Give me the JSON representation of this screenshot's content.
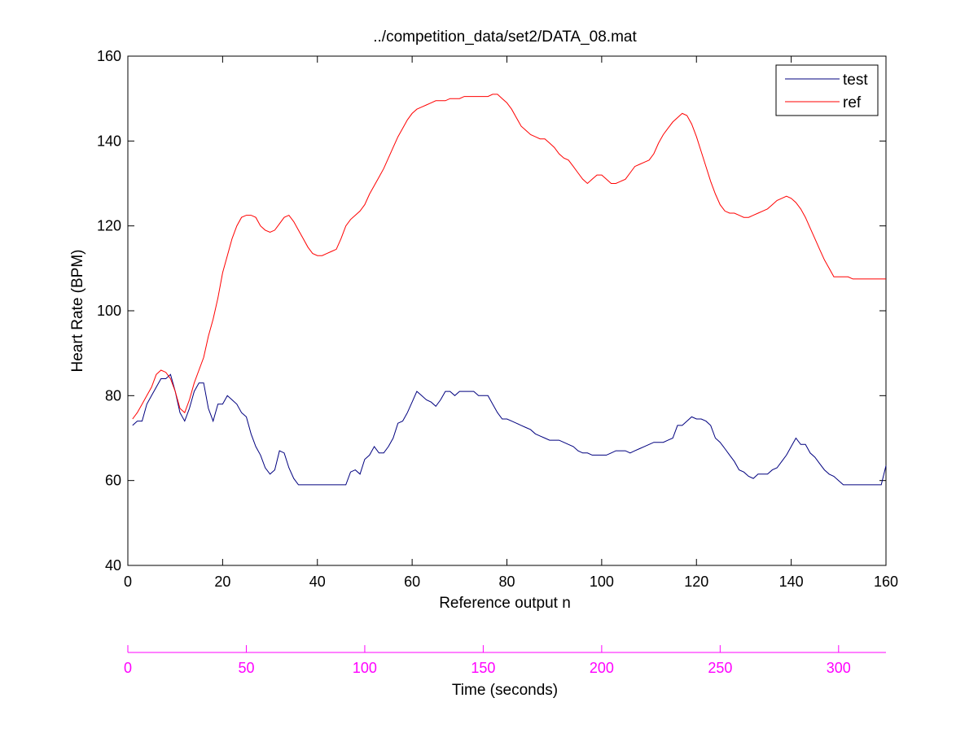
{
  "chart_data": {
    "type": "line",
    "title": "../competition_data/set2/DATA_08.mat",
    "xlabel": "Reference output n",
    "ylabel": "Heart Rate (BPM)",
    "xlim": [
      0,
      160
    ],
    "ylim": [
      40,
      160
    ],
    "x_ticks": [
      0,
      20,
      40,
      60,
      80,
      100,
      120,
      140,
      160
    ],
    "y_ticks": [
      40,
      60,
      80,
      100,
      120,
      140,
      160
    ],
    "grid": false,
    "legend_position": "top-right",
    "series": [
      {
        "name": "test",
        "color": "#00007f",
        "points": [
          [
            1,
            73
          ],
          [
            2,
            74
          ],
          [
            3,
            74
          ],
          [
            4,
            78
          ],
          [
            5,
            80
          ],
          [
            6,
            82
          ],
          [
            7,
            84
          ],
          [
            8,
            84
          ],
          [
            9,
            85
          ],
          [
            10,
            81
          ],
          [
            11,
            76
          ],
          [
            12,
            74
          ],
          [
            13,
            77
          ],
          [
            14,
            81
          ],
          [
            15,
            83
          ],
          [
            16,
            83
          ],
          [
            17,
            77
          ],
          [
            18,
            74
          ],
          [
            19,
            78
          ],
          [
            20,
            78
          ],
          [
            21,
            80
          ],
          [
            22,
            79
          ],
          [
            23,
            78
          ],
          [
            24,
            76
          ],
          [
            25,
            75
          ],
          [
            26,
            71
          ],
          [
            27,
            68
          ],
          [
            28,
            66
          ],
          [
            29,
            63
          ],
          [
            30,
            61.5
          ],
          [
            31,
            62.5
          ],
          [
            32,
            67
          ],
          [
            33,
            66.5
          ],
          [
            34,
            63
          ],
          [
            35,
            60.5
          ],
          [
            36,
            59
          ],
          [
            40,
            59
          ],
          [
            44,
            59
          ],
          [
            46,
            59
          ],
          [
            47,
            62
          ],
          [
            48,
            62.5
          ],
          [
            49,
            61.5
          ],
          [
            50,
            65
          ],
          [
            51,
            66
          ],
          [
            52,
            68
          ],
          [
            53,
            66.5
          ],
          [
            54,
            66.5
          ],
          [
            55,
            68
          ],
          [
            56,
            70
          ],
          [
            57,
            73.5
          ],
          [
            58,
            74
          ],
          [
            59,
            76
          ],
          [
            60,
            78.5
          ],
          [
            61,
            81
          ],
          [
            62,
            80
          ],
          [
            63,
            79
          ],
          [
            64,
            78.5
          ],
          [
            65,
            77.5
          ],
          [
            66,
            79
          ],
          [
            67,
            81
          ],
          [
            68,
            81
          ],
          [
            69,
            80
          ],
          [
            70,
            81
          ],
          [
            71,
            81
          ],
          [
            72,
            81
          ],
          [
            73,
            81
          ],
          [
            74,
            80
          ],
          [
            75,
            80
          ],
          [
            76,
            80
          ],
          [
            77,
            78
          ],
          [
            78,
            76
          ],
          [
            79,
            74.5
          ],
          [
            80,
            74.5
          ],
          [
            81,
            74
          ],
          [
            82,
            73.5
          ],
          [
            83,
            73
          ],
          [
            84,
            72.5
          ],
          [
            85,
            72
          ],
          [
            86,
            71
          ],
          [
            87,
            70.5
          ],
          [
            88,
            70
          ],
          [
            89,
            69.5
          ],
          [
            90,
            69.5
          ],
          [
            91,
            69.5
          ],
          [
            92,
            69
          ],
          [
            93,
            68.5
          ],
          [
            94,
            68
          ],
          [
            95,
            67
          ],
          [
            96,
            66.5
          ],
          [
            97,
            66.5
          ],
          [
            98,
            66
          ],
          [
            99,
            66
          ],
          [
            100,
            66
          ],
          [
            101,
            66
          ],
          [
            102,
            66.5
          ],
          [
            103,
            67
          ],
          [
            104,
            67
          ],
          [
            105,
            67
          ],
          [
            106,
            66.5
          ],
          [
            107,
            67
          ],
          [
            108,
            67.5
          ],
          [
            109,
            68
          ],
          [
            110,
            68.5
          ],
          [
            111,
            69
          ],
          [
            112,
            69
          ],
          [
            113,
            69
          ],
          [
            114,
            69.5
          ],
          [
            115,
            70
          ],
          [
            116,
            73
          ],
          [
            117,
            73
          ],
          [
            118,
            74
          ],
          [
            119,
            75
          ],
          [
            120,
            74.5
          ],
          [
            121,
            74.5
          ],
          [
            122,
            74
          ],
          [
            123,
            73
          ],
          [
            124,
            70
          ],
          [
            125,
            69
          ],
          [
            126,
            67.5
          ],
          [
            127,
            66
          ],
          [
            128,
            64.5
          ],
          [
            129,
            62.5
          ],
          [
            130,
            62
          ],
          [
            131,
            61
          ],
          [
            132,
            60.5
          ],
          [
            133,
            61.5
          ],
          [
            134,
            61.5
          ],
          [
            135,
            61.5
          ],
          [
            136,
            62.5
          ],
          [
            137,
            63
          ],
          [
            138,
            64.5
          ],
          [
            139,
            66
          ],
          [
            140,
            68
          ],
          [
            141,
            70
          ],
          [
            142,
            68.5
          ],
          [
            143,
            68.5
          ],
          [
            144,
            66.5
          ],
          [
            145,
            65.5
          ],
          [
            146,
            64
          ],
          [
            147,
            62.5
          ],
          [
            148,
            61.5
          ],
          [
            149,
            61
          ],
          [
            150,
            60
          ],
          [
            151,
            59
          ],
          [
            155,
            59
          ],
          [
            158,
            59
          ],
          [
            159,
            59
          ],
          [
            160,
            63.5
          ]
        ]
      },
      {
        "name": "ref",
        "color": "#ff0000",
        "points": [
          [
            1,
            74.5
          ],
          [
            2,
            76
          ],
          [
            3,
            78
          ],
          [
            4,
            80
          ],
          [
            5,
            82
          ],
          [
            6,
            85
          ],
          [
            7,
            86
          ],
          [
            8,
            85.5
          ],
          [
            9,
            84
          ],
          [
            10,
            81
          ],
          [
            11,
            77
          ],
          [
            12,
            76
          ],
          [
            13,
            79
          ],
          [
            14,
            83
          ],
          [
            15,
            86
          ],
          [
            16,
            89
          ],
          [
            17,
            94
          ],
          [
            18,
            98
          ],
          [
            19,
            103
          ],
          [
            20,
            109
          ],
          [
            21,
            113
          ],
          [
            22,
            117
          ],
          [
            23,
            120
          ],
          [
            24,
            122
          ],
          [
            25,
            122.5
          ],
          [
            26,
            122.5
          ],
          [
            27,
            122
          ],
          [
            28,
            120
          ],
          [
            29,
            119
          ],
          [
            30,
            118.5
          ],
          [
            31,
            119
          ],
          [
            32,
            120.5
          ],
          [
            33,
            122
          ],
          [
            34,
            122.5
          ],
          [
            35,
            121
          ],
          [
            36,
            119
          ],
          [
            37,
            117
          ],
          [
            38,
            115
          ],
          [
            39,
            113.5
          ],
          [
            40,
            113
          ],
          [
            41,
            113
          ],
          [
            42,
            113.5
          ],
          [
            43,
            114
          ],
          [
            44,
            114.5
          ],
          [
            45,
            117
          ],
          [
            46,
            120
          ],
          [
            47,
            121.5
          ],
          [
            48,
            122.5
          ],
          [
            49,
            123.5
          ],
          [
            50,
            125
          ],
          [
            51,
            127.5
          ],
          [
            52,
            129.5
          ],
          [
            53,
            131.5
          ],
          [
            54,
            133.5
          ],
          [
            55,
            136
          ],
          [
            56,
            138.5
          ],
          [
            57,
            141
          ],
          [
            58,
            143
          ],
          [
            59,
            145
          ],
          [
            60,
            146.5
          ],
          [
            61,
            147.5
          ],
          [
            62,
            148
          ],
          [
            63,
            148.5
          ],
          [
            64,
            149
          ],
          [
            65,
            149.5
          ],
          [
            66,
            149.5
          ],
          [
            67,
            149.5
          ],
          [
            68,
            150
          ],
          [
            69,
            150
          ],
          [
            70,
            150
          ],
          [
            71,
            150.5
          ],
          [
            72,
            150.5
          ],
          [
            73,
            150.5
          ],
          [
            74,
            150.5
          ],
          [
            75,
            150.5
          ],
          [
            76,
            150.5
          ],
          [
            77,
            151
          ],
          [
            78,
            151
          ],
          [
            79,
            150
          ],
          [
            80,
            149
          ],
          [
            81,
            147.5
          ],
          [
            82,
            145.5
          ],
          [
            83,
            143.5
          ],
          [
            84,
            142.5
          ],
          [
            85,
            141.5
          ],
          [
            86,
            141
          ],
          [
            87,
            140.5
          ],
          [
            88,
            140.5
          ],
          [
            89,
            139.5
          ],
          [
            90,
            138.5
          ],
          [
            91,
            137
          ],
          [
            92,
            136
          ],
          [
            93,
            135.5
          ],
          [
            94,
            134
          ],
          [
            95,
            132.5
          ],
          [
            96,
            131
          ],
          [
            97,
            130
          ],
          [
            98,
            131
          ],
          [
            99,
            132
          ],
          [
            100,
            132
          ],
          [
            101,
            131
          ],
          [
            102,
            130
          ],
          [
            103,
            130
          ],
          [
            104,
            130.5
          ],
          [
            105,
            131
          ],
          [
            106,
            132.5
          ],
          [
            107,
            134
          ],
          [
            108,
            134.5
          ],
          [
            109,
            135
          ],
          [
            110,
            135.5
          ],
          [
            111,
            137
          ],
          [
            112,
            139.5
          ],
          [
            113,
            141.5
          ],
          [
            114,
            143
          ],
          [
            115,
            144.5
          ],
          [
            116,
            145.5
          ],
          [
            117,
            146.5
          ],
          [
            118,
            146
          ],
          [
            119,
            144
          ],
          [
            120,
            141
          ],
          [
            121,
            137.5
          ],
          [
            122,
            134
          ],
          [
            123,
            130.5
          ],
          [
            124,
            127.5
          ],
          [
            125,
            125
          ],
          [
            126,
            123.5
          ],
          [
            127,
            123
          ],
          [
            128,
            123
          ],
          [
            129,
            122.5
          ],
          [
            130,
            122
          ],
          [
            131,
            122
          ],
          [
            132,
            122.5
          ],
          [
            133,
            123
          ],
          [
            134,
            123.5
          ],
          [
            135,
            124
          ],
          [
            136,
            125
          ],
          [
            137,
            126
          ],
          [
            138,
            126.5
          ],
          [
            139,
            127
          ],
          [
            140,
            126.5
          ],
          [
            141,
            125.5
          ],
          [
            142,
            124
          ],
          [
            143,
            122
          ],
          [
            144,
            119.5
          ],
          [
            145,
            117
          ],
          [
            146,
            114.5
          ],
          [
            147,
            112
          ],
          [
            148,
            110
          ],
          [
            149,
            108
          ],
          [
            150,
            108
          ],
          [
            151,
            108
          ],
          [
            152,
            108
          ],
          [
            153,
            107.5
          ],
          [
            160,
            107.5
          ]
        ]
      }
    ]
  },
  "time_axis": {
    "label": "Time (seconds)",
    "xlim": [
      0,
      320
    ],
    "ticks": [
      0,
      50,
      100,
      150,
      200,
      250,
      300
    ],
    "color": "#ff00ff"
  }
}
